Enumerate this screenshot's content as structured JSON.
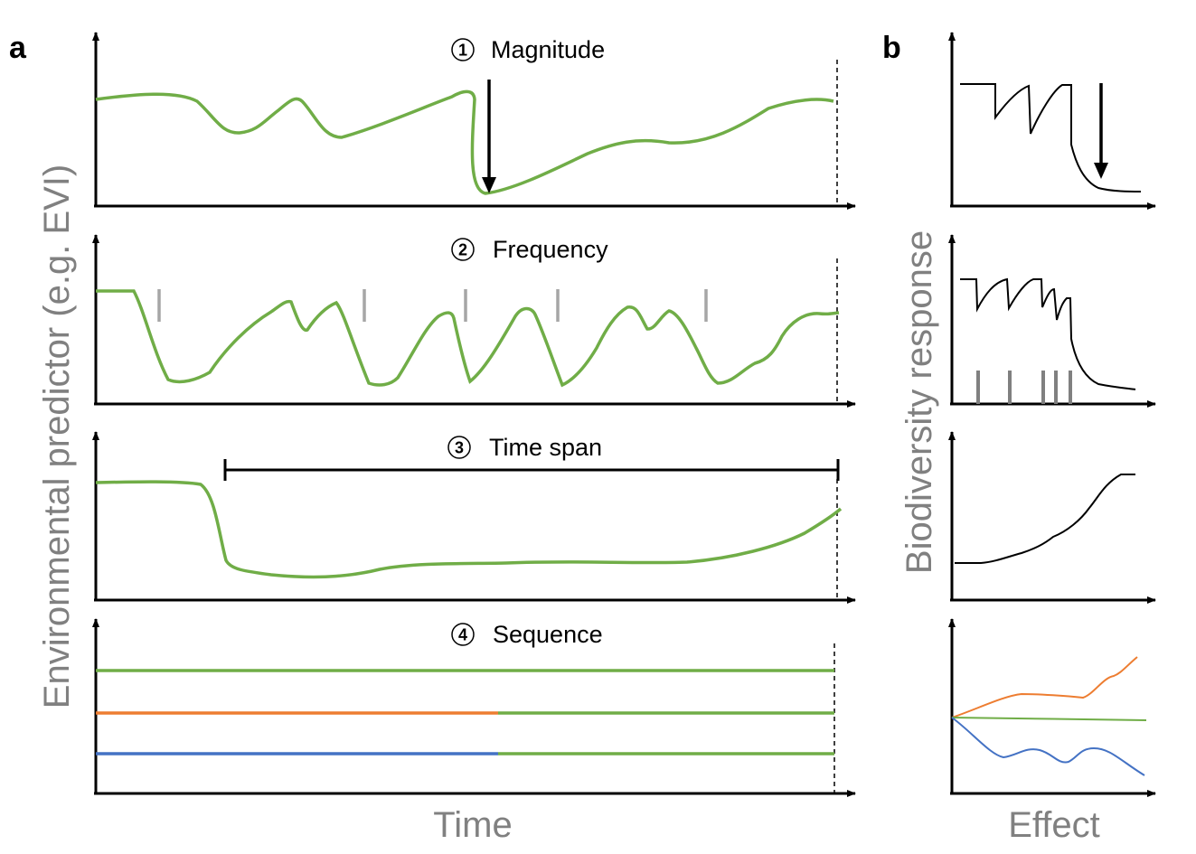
{
  "panel_a": {
    "letter": "a",
    "ylabel": "Environmental predictor (e.g. EVI)",
    "xlabel": "Time",
    "subplots": [
      {
        "number": "1",
        "title": "Magnitude"
      },
      {
        "number": "2",
        "title": "Frequency"
      },
      {
        "number": "3",
        "title": "Time span"
      },
      {
        "number": "4",
        "title": "Sequence"
      }
    ]
  },
  "panel_b": {
    "letter": "b",
    "ylabel": "Biodiversity response",
    "xlabel": "Effect"
  },
  "colors": {
    "green": "#70ad47",
    "orange": "#ed7d31",
    "blue": "#4472c4",
    "gray": "#a6a6a6",
    "black": "#000000"
  }
}
